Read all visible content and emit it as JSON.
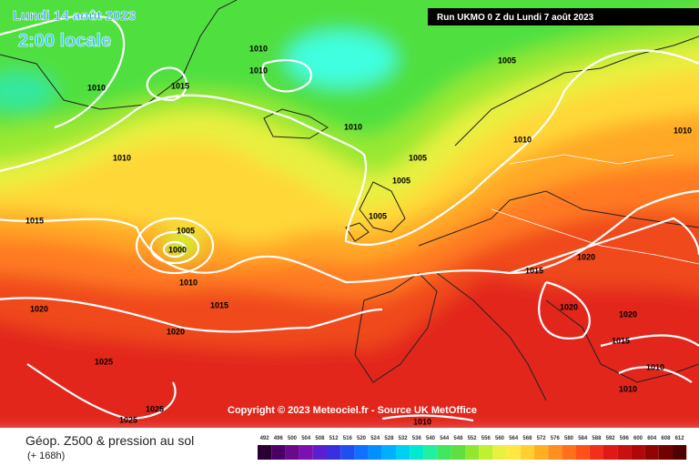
{
  "header": {
    "date": "Lundi 14 août 2023",
    "time": "2:00 locale",
    "run": "Run UKMO 0 Z du Lundi 7 août 2023"
  },
  "copyright": "Copyright © 2023 Meteociel.fr - Source UK MetOffice",
  "isobar_labels": [
    "1010",
    "1010",
    "1010",
    "1015",
    "1005",
    "1010",
    "1010",
    "1010",
    "1010",
    "1005",
    "1005",
    "1005",
    "1015",
    "1005",
    "1000",
    "1010",
    "1015",
    "1015",
    "1020",
    "1020",
    "1020",
    "1020",
    "1020",
    "1015",
    "1010",
    "1010",
    "1025",
    "1025",
    "1025",
    "1010"
  ],
  "footer": {
    "title": "Géop. Z500 & pression au sol",
    "subtitle": "(+ 168h)"
  },
  "scale": {
    "labels": [
      492,
      496,
      500,
      504,
      508,
      512,
      516,
      520,
      524,
      528,
      532,
      536,
      540,
      544,
      548,
      552,
      556,
      560,
      564,
      568,
      572,
      576,
      580,
      584,
      588,
      592,
      596,
      600,
      604,
      608,
      612
    ],
    "colors": [
      "#2a0033",
      "#4b0066",
      "#6a0a8a",
      "#7d10b0",
      "#5c1fd0",
      "#3a2fe0",
      "#1f4ff0",
      "#1070ff",
      "#0090ff",
      "#00b0ff",
      "#00d0f0",
      "#00e8d0",
      "#20f0a0",
      "#40e860",
      "#60e040",
      "#90e830",
      "#c0f030",
      "#e8f040",
      "#ffe840",
      "#ffd030",
      "#ffb020",
      "#ff9020",
      "#ff7018",
      "#ff5018",
      "#f03018",
      "#e01818",
      "#c81010",
      "#b00808",
      "#900404",
      "#700202",
      "#500000"
    ]
  }
}
